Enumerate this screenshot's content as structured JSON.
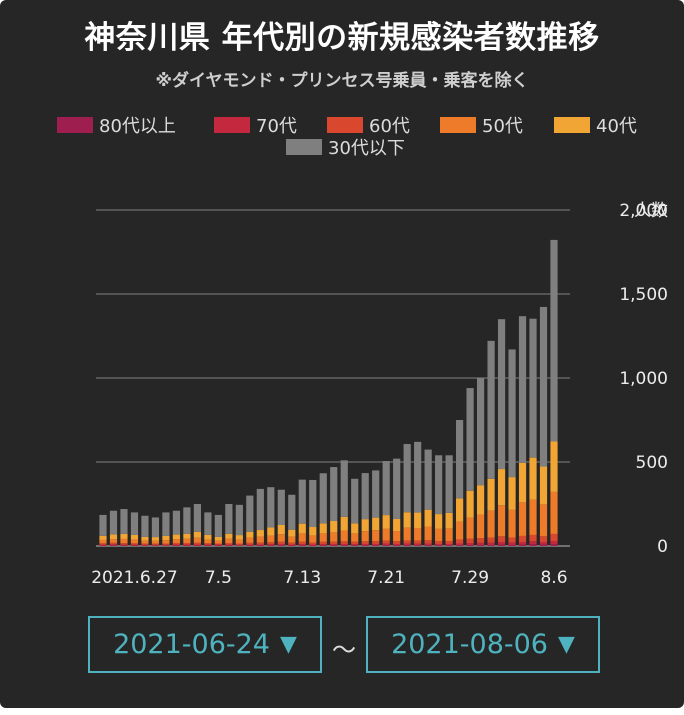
{
  "title": "神奈川県 年代別の新規感染者数推移",
  "subtitle": "※ダイヤモンド・プリンセス号乗員・乗客を除く",
  "legend": [
    {
      "label": "80代以上",
      "color": "#9e1f4f"
    },
    {
      "label": "70代",
      "color": "#c4283f"
    },
    {
      "label": "60代",
      "color": "#d9472f"
    },
    {
      "label": "50代",
      "color": "#ee7b2a"
    },
    {
      "label": "40代",
      "color": "#f0a535"
    },
    {
      "label": "30代以下",
      "color": "#7f7f7f"
    }
  ],
  "range": {
    "start": "2021-06-24",
    "end": "2021-08-06",
    "separator": "〜",
    "arrow": "▼"
  },
  "chart_data": {
    "type": "bar",
    "stacked": true,
    "y_unit_label": "人数",
    "ylim": [
      0,
      2000
    ],
    "yticks": [
      0,
      500,
      1000,
      1500,
      2000
    ],
    "ytick_labels": [
      "0",
      "500",
      "1,000",
      "1,500",
      "2,000"
    ],
    "y_axis_side": "right",
    "grid": true,
    "xtick_labels": [
      {
        "index": 3,
        "label": "2021.6.27"
      },
      {
        "index": 11,
        "label": "7.5"
      },
      {
        "index": 19,
        "label": "7.13"
      },
      {
        "index": 27,
        "label": "7.21"
      },
      {
        "index": 35,
        "label": "7.29"
      },
      {
        "index": 43,
        "label": "8.6"
      }
    ],
    "categories": [
      "6/24",
      "6/25",
      "6/26",
      "6/27",
      "6/28",
      "6/29",
      "6/30",
      "7/1",
      "7/2",
      "7/3",
      "7/4",
      "7/5",
      "7/6",
      "7/7",
      "7/8",
      "7/9",
      "7/10",
      "7/11",
      "7/12",
      "7/13",
      "7/14",
      "7/15",
      "7/16",
      "7/17",
      "7/18",
      "7/19",
      "7/20",
      "7/21",
      "7/22",
      "7/23",
      "7/24",
      "7/25",
      "7/26",
      "7/27",
      "7/28",
      "7/29",
      "7/30",
      "7/31",
      "8/1",
      "8/2",
      "8/3",
      "8/4",
      "8/5",
      "8/6"
    ],
    "series": [
      {
        "name": "80代以上",
        "values": [
          3,
          4,
          3,
          3,
          2,
          2,
          2,
          3,
          3,
          3,
          3,
          3,
          3,
          2,
          3,
          3,
          3,
          4,
          3,
          4,
          3,
          4,
          3,
          4,
          4,
          4,
          4,
          5,
          4,
          5,
          4,
          5,
          4,
          4,
          5,
          6,
          6,
          6,
          8,
          6,
          8,
          10,
          8,
          10
        ]
      },
      {
        "name": "70代",
        "values": [
          5,
          6,
          5,
          5,
          5,
          5,
          5,
          6,
          6,
          6,
          5,
          5,
          6,
          5,
          6,
          6,
          7,
          8,
          6,
          7,
          6,
          7,
          7,
          8,
          7,
          8,
          8,
          9,
          8,
          9,
          9,
          9,
          8,
          8,
          10,
          12,
          13,
          14,
          16,
          14,
          16,
          18,
          16,
          20
        ]
      },
      {
        "name": "60代",
        "values": [
          8,
          9,
          9,
          8,
          7,
          7,
          8,
          9,
          9,
          10,
          8,
          7,
          9,
          8,
          10,
          11,
          12,
          13,
          11,
          14,
          12,
          14,
          15,
          16,
          14,
          16,
          17,
          18,
          17,
          19,
          19,
          20,
          18,
          18,
          24,
          26,
          28,
          30,
          34,
          30,
          36,
          38,
          34,
          42
        ]
      },
      {
        "name": "50代",
        "values": [
          20,
          22,
          25,
          22,
          18,
          17,
          20,
          22,
          25,
          30,
          22,
          17,
          25,
          22,
          30,
          35,
          40,
          45,
          35,
          50,
          42,
          50,
          56,
          64,
          50,
          60,
          65,
          70,
          60,
          76,
          75,
          82,
          72,
          75,
          105,
          125,
          140,
          160,
          185,
          165,
          200,
          210,
          190,
          250
        ]
      },
      {
        "name": "40代",
        "values": [
          25,
          28,
          30,
          28,
          22,
          22,
          25,
          28,
          30,
          35,
          28,
          22,
          30,
          28,
          35,
          40,
          48,
          55,
          42,
          58,
          50,
          60,
          68,
          82,
          60,
          72,
          75,
          82,
          72,
          92,
          92,
          100,
          88,
          92,
          140,
          160,
          175,
          190,
          215,
          195,
          235,
          250,
          225,
          300
        ]
      },
      {
        "name": "30代以下",
        "values": [
          124,
          141,
          148,
          134,
          126,
          117,
          140,
          142,
          157,
          166,
          134,
          131,
          177,
          180,
          216,
          245,
          240,
          210,
          208,
          262,
          280,
          298,
          321,
          336,
          265,
          274,
          281,
          322,
          359,
          406,
          421,
          358,
          350,
          343,
          466,
          611,
          638,
          821,
          892,
          760,
          873,
          827,
          950,
          1200
        ]
      }
    ]
  }
}
